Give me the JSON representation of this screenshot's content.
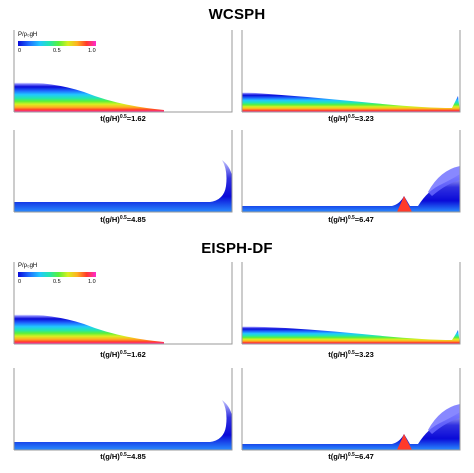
{
  "sections": [
    {
      "title": "WCSPH",
      "legend": {
        "label": "P/ρ₀gH",
        "ticks": [
          "0",
          "0.5",
          "1.0"
        ]
      },
      "panels": [
        {
          "caption_base": "t(g/H)",
          "caption_exp": "0.5",
          "caption_value": "=1.62"
        },
        {
          "caption_base": "t(g/H)",
          "caption_exp": "0.5",
          "caption_value": "=3.23"
        },
        {
          "caption_base": "t(g/H)",
          "caption_exp": "0.5",
          "caption_value": "=4.85"
        },
        {
          "caption_base": "t(g/H)",
          "caption_exp": "0.5",
          "caption_value": "=6.47"
        }
      ]
    },
    {
      "title": "EISPH-DF",
      "legend": {
        "label": "P/ρ₀gH",
        "ticks": [
          "0",
          "0.5",
          "1.0"
        ]
      },
      "panels": [
        {
          "caption_base": "t(g/H)",
          "caption_exp": "0.5",
          "caption_value": "=1.62"
        },
        {
          "caption_base": "t(g/H)",
          "caption_exp": "0.5",
          "caption_value": "=3.23"
        },
        {
          "caption_base": "t(g/H)",
          "caption_exp": "0.5",
          "caption_value": "=4.85"
        },
        {
          "caption_base": "t(g/H)",
          "caption_exp": "0.5",
          "caption_value": "=6.47"
        }
      ]
    }
  ]
}
